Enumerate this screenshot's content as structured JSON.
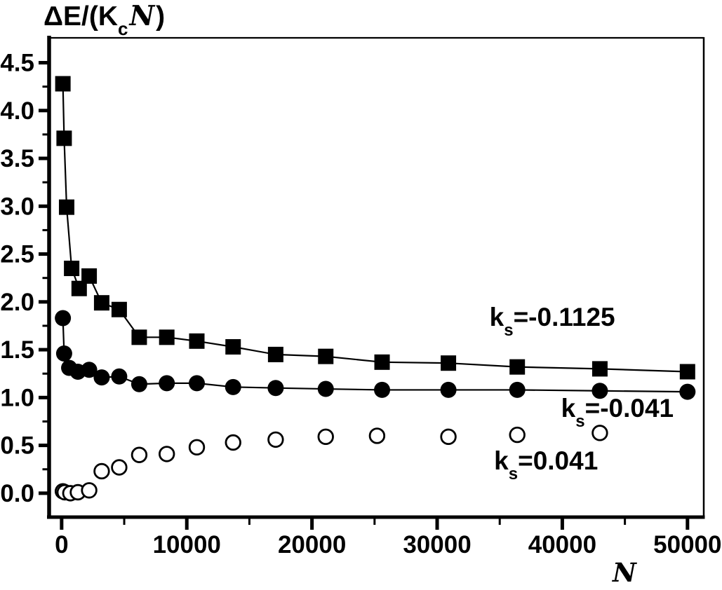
{
  "figure": {
    "background": "#ffffff",
    "ink": "#000000"
  },
  "chart_data": {
    "type": "scatter",
    "title_prefix": "ΔE/(K",
    "title_sub": "c",
    "title_script": "N",
    "title_suffix": ")",
    "xlabel": "N",
    "ylabel": "",
    "grid": false,
    "legend_position": "none (inline text annotations)",
    "xlim": [
      -1000,
      51300
    ],
    "ylim": [
      -0.25,
      4.76
    ],
    "x_ticks": {
      "major_values": [
        0,
        10000,
        20000,
        30000,
        40000,
        50000
      ],
      "major_labels": [
        "0",
        "10000",
        "20000",
        "30000",
        "40000",
        "50000"
      ],
      "minor_values": [
        5000,
        15000,
        25000,
        35000,
        45000
      ]
    },
    "y_ticks": {
      "major_values": [
        0.0,
        0.5,
        1.0,
        1.5,
        2.0,
        2.5,
        3.0,
        3.5,
        4.0,
        4.5
      ],
      "major_labels": [
        "0.0",
        "0.5",
        "1.0",
        "1.5",
        "2.0",
        "2.5",
        "3.0",
        "3.5",
        "4.0",
        "4.5"
      ],
      "minor_values": [
        0.25,
        0.75,
        1.25,
        1.75,
        2.25,
        2.75,
        3.25,
        3.75,
        4.25
      ]
    },
    "series": [
      {
        "id": "ks-neg-0p1125",
        "name": "ks = -0.1125",
        "marker": "filled-square",
        "connected": true,
        "x": [
          100,
          200,
          400,
          800,
          1400,
          2200,
          3200,
          4600,
          6200,
          8400,
          10800,
          13700,
          17100,
          21100,
          25600,
          30900,
          36400,
          43000,
          50000
        ],
        "y": [
          4.28,
          3.71,
          2.99,
          2.35,
          2.14,
          2.27,
          1.99,
          1.92,
          1.63,
          1.63,
          1.59,
          1.53,
          1.45,
          1.43,
          1.37,
          1.36,
          1.32,
          1.3,
          1.27
        ]
      },
      {
        "id": "ks-neg-0p041",
        "name": "ks = -0.041",
        "marker": "filled-circle",
        "connected": true,
        "x": [
          100,
          200,
          600,
          1300,
          2200,
          3200,
          4600,
          6200,
          8400,
          10800,
          13700,
          17100,
          21100,
          25600,
          30900,
          36400,
          43000,
          50000
        ],
        "y": [
          1.83,
          1.46,
          1.31,
          1.27,
          1.29,
          1.21,
          1.22,
          1.14,
          1.15,
          1.15,
          1.11,
          1.1,
          1.09,
          1.08,
          1.08,
          1.08,
          1.07,
          1.06
        ]
      },
      {
        "id": "ks-pos-0p041",
        "name": "ks = 0.041",
        "marker": "open-circle",
        "connected": false,
        "x": [
          100,
          250,
          700,
          1300,
          2200,
          3200,
          4600,
          6200,
          8400,
          10800,
          13700,
          17100,
          21100,
          25200,
          30900,
          36400,
          43000
        ],
        "y": [
          0.02,
          0.01,
          0.0,
          0.01,
          0.03,
          0.23,
          0.27,
          0.4,
          0.41,
          0.48,
          0.53,
          0.56,
          0.59,
          0.6,
          0.59,
          0.61,
          0.63
        ]
      }
    ],
    "annotations": [
      {
        "pre": "k",
        "sub": "s",
        "post": "=-0.1125",
        "x": 39200,
        "y": 1.79
      },
      {
        "pre": "k",
        "sub": "s",
        "post": "=-0.041",
        "x": 44400,
        "y": 0.84
      },
      {
        "pre": "k",
        "sub": "s",
        "post": "=0.041",
        "x": 38700,
        "y": 0.29
      }
    ]
  }
}
